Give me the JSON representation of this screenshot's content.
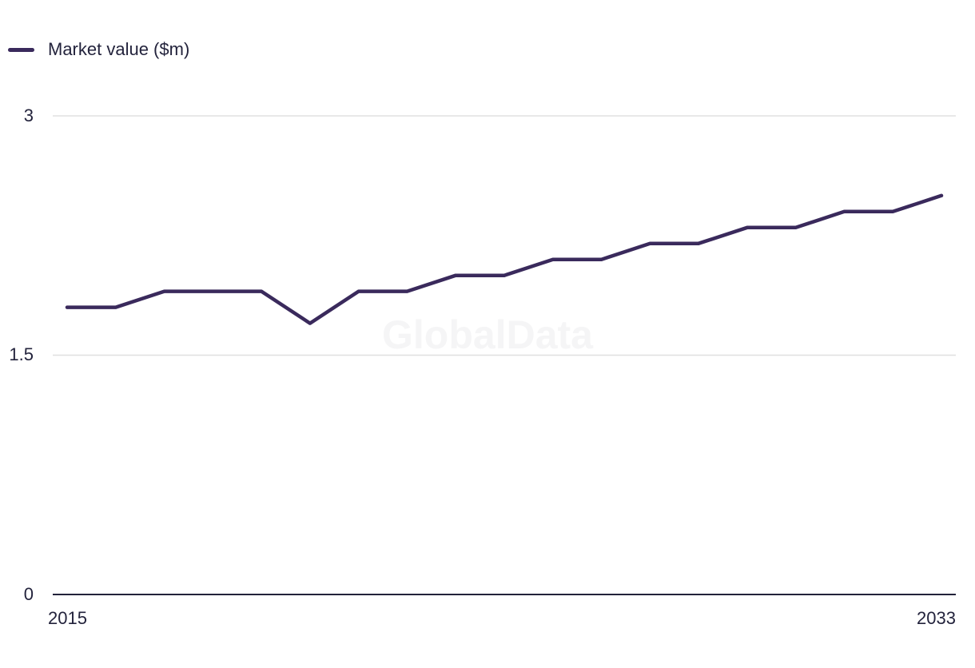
{
  "watermark": "GlobalData",
  "legend": {
    "label": "Market value ($m)"
  },
  "colors": {
    "line": "#3a2a5c",
    "grid": "#e0e0e0",
    "axis": "#22223a",
    "text": "#23233c",
    "watermark": "#f5f5f6",
    "background": "#ffffff"
  },
  "chart_data": {
    "type": "line",
    "title": "",
    "xlabel": "",
    "ylabel": "",
    "x": [
      2015,
      2016,
      2017,
      2018,
      2019,
      2020,
      2021,
      2022,
      2023,
      2024,
      2025,
      2026,
      2027,
      2028,
      2029,
      2030,
      2031,
      2032,
      2033
    ],
    "series": [
      {
        "name": "Market value ($m)",
        "values": [
          1.8,
          1.8,
          1.9,
          1.9,
          1.9,
          1.7,
          1.9,
          1.9,
          2.0,
          2.0,
          2.1,
          2.1,
          2.2,
          2.2,
          2.3,
          2.3,
          2.4,
          2.4,
          2.5
        ]
      }
    ],
    "ylim": [
      0,
      3
    ],
    "yticks": [
      0,
      1.5,
      3
    ],
    "ytick_labels": [
      "0",
      "1.5",
      "3"
    ],
    "xtick_labels": [
      "2015",
      "2033"
    ],
    "grid": "horizontal",
    "legend_position": "top-left"
  }
}
